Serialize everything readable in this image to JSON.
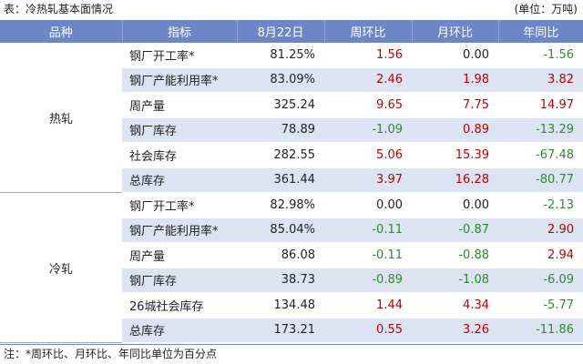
{
  "caption": "表：冷热轧基本面情况",
  "unit": "(单位：万吨)",
  "columns": [
    "品种",
    "指标",
    "8月22日",
    "周环比",
    "月环比",
    "年同比"
  ],
  "groups": [
    {
      "name": "热轧",
      "rows": [
        {
          "indicator": "钢厂开工率*",
          "value": "81.25%",
          "wow": "1.56",
          "mom": "0.00",
          "yoy": "-1.56"
        },
        {
          "indicator": "钢厂产能利用率*",
          "value": "83.09%",
          "wow": "2.46",
          "mom": "1.98",
          "yoy": "3.82"
        },
        {
          "indicator": "周产量",
          "value": "325.24",
          "wow": "9.65",
          "mom": "7.75",
          "yoy": "14.97"
        },
        {
          "indicator": "钢厂库存",
          "value": "78.89",
          "wow": "-1.09",
          "mom": "0.89",
          "yoy": "-13.29"
        },
        {
          "indicator": "社会库存",
          "value": "282.55",
          "wow": "5.06",
          "mom": "15.39",
          "yoy": "-67.48"
        },
        {
          "indicator": "总库存",
          "value": "361.44",
          "wow": "3.97",
          "mom": "16.28",
          "yoy": "-80.77"
        }
      ]
    },
    {
      "name": "冷轧",
      "rows": [
        {
          "indicator": "钢厂开工率*",
          "value": "82.98%",
          "wow": "0.00",
          "mom": "0.00",
          "yoy": "-2.13"
        },
        {
          "indicator": "钢厂产能利用率*",
          "value": "85.04%",
          "wow": "-0.11",
          "mom": "-0.87",
          "yoy": "2.90"
        },
        {
          "indicator": "周产量",
          "value": "86.08",
          "wow": "-0.11",
          "mom": "-0.88",
          "yoy": "2.94"
        },
        {
          "indicator": "钢厂库存",
          "value": "38.73",
          "wow": "-0.89",
          "mom": "-1.08",
          "yoy": "-6.09"
        },
        {
          "indicator": "26城社会库存",
          "value": "134.48",
          "wow": "1.44",
          "mom": "4.34",
          "yoy": "-5.77"
        },
        {
          "indicator": "总库存",
          "value": "173.21",
          "wow": "0.55",
          "mom": "3.26",
          "yoy": "-11.86"
        }
      ]
    }
  ],
  "footnote": "注：*周环比、月环比、年同比单位为百分点",
  "colors": {
    "header": "#6d86c6",
    "band": "#dce3f2",
    "positive": "#c00000",
    "negative": "#2e8b2e"
  }
}
